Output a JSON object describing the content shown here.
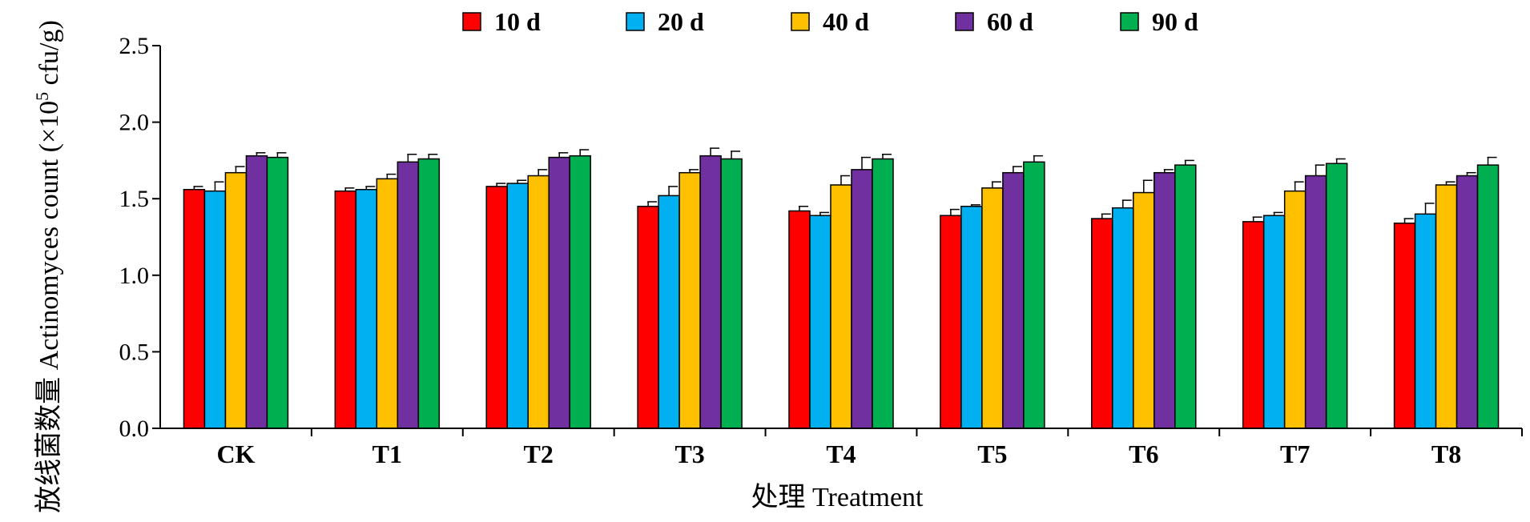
{
  "chart_data": {
    "type": "bar",
    "xlabel": "处理 Treatment",
    "ylabel_prefix": "放线菌数量 Actinomyces count (×10",
    "ylabel_exp": "5",
    "ylabel_suffix": " cfu/g)",
    "ylim": [
      0,
      2.5
    ],
    "yticks": [
      "0.0",
      "0.5",
      "1.0",
      "1.5",
      "2.0",
      "2.5"
    ],
    "ytick_values": [
      0,
      0.5,
      1.0,
      1.5,
      2.0,
      2.5
    ],
    "categories": [
      "CK",
      "T1",
      "T2",
      "T3",
      "T4",
      "T5",
      "T6",
      "T7",
      "T8"
    ],
    "legend_position": "top",
    "series": [
      {
        "name": "10 d",
        "color": "#ff0000",
        "values": [
          1.56,
          1.55,
          1.58,
          1.45,
          1.42,
          1.39,
          1.37,
          1.35,
          1.34
        ],
        "errors": [
          0.02,
          0.02,
          0.02,
          0.03,
          0.03,
          0.04,
          0.03,
          0.03,
          0.03
        ]
      },
      {
        "name": "20 d",
        "color": "#00b0f0",
        "values": [
          1.55,
          1.56,
          1.6,
          1.52,
          1.39,
          1.45,
          1.44,
          1.39,
          1.4
        ],
        "errors": [
          0.06,
          0.02,
          0.02,
          0.06,
          0.02,
          0.01,
          0.05,
          0.02,
          0.07
        ]
      },
      {
        "name": "40 d",
        "color": "#ffc000",
        "values": [
          1.67,
          1.63,
          1.65,
          1.67,
          1.59,
          1.57,
          1.54,
          1.55,
          1.59
        ],
        "errors": [
          0.04,
          0.03,
          0.04,
          0.02,
          0.06,
          0.04,
          0.08,
          0.06,
          0.02
        ]
      },
      {
        "name": "60 d",
        "color": "#7030a0",
        "values": [
          1.78,
          1.74,
          1.77,
          1.78,
          1.69,
          1.67,
          1.67,
          1.65,
          1.65
        ],
        "errors": [
          0.02,
          0.05,
          0.03,
          0.05,
          0.08,
          0.04,
          0.02,
          0.07,
          0.02
        ]
      },
      {
        "name": "90 d",
        "color": "#00b050",
        "values": [
          1.77,
          1.76,
          1.78,
          1.76,
          1.76,
          1.74,
          1.72,
          1.73,
          1.72
        ],
        "errors": [
          0.03,
          0.03,
          0.04,
          0.05,
          0.03,
          0.04,
          0.03,
          0.03,
          0.05
        ]
      }
    ]
  }
}
